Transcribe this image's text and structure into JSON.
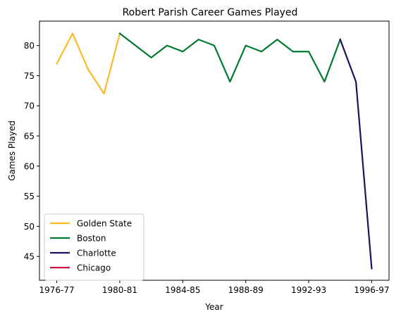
{
  "chart_data": {
    "type": "line",
    "title": "Robert Parish Career Games Played",
    "xlabel": "Year",
    "ylabel": "Games Played",
    "x_ticks": [
      "1976-77",
      "1980-81",
      "1984-85",
      "1988-89",
      "1992-93",
      "1996-97"
    ],
    "x_tick_positions": [
      0,
      4,
      8,
      12,
      16,
      20
    ],
    "xlim": [
      -1.1,
      21.1
    ],
    "ylim": [
      41.05,
      84.05
    ],
    "y_ticks": [
      45,
      50,
      55,
      60,
      65,
      70,
      75,
      80
    ],
    "grid": false,
    "legend_position": "lower-left",
    "series": [
      {
        "name": "Golden State",
        "color": "#FDB927",
        "x": [
          0,
          1,
          2,
          3,
          4
        ],
        "values": [
          77,
          82,
          76,
          72,
          82
        ]
      },
      {
        "name": "Boston",
        "color": "#007A33",
        "x": [
          4,
          5,
          6,
          7,
          8,
          9,
          10,
          11,
          12,
          13,
          14,
          15,
          16,
          17,
          18
        ],
        "values": [
          82,
          80,
          78,
          80,
          79,
          81,
          80,
          74,
          80,
          79,
          81,
          79,
          79,
          74,
          81
        ]
      },
      {
        "name": "Charlotte",
        "color": "#1D1160",
        "x": [
          18,
          19,
          20
        ],
        "values": [
          81,
          74,
          43
        ]
      },
      {
        "name": "Chicago",
        "color": "#CE1141",
        "x": [],
        "values": []
      }
    ]
  }
}
